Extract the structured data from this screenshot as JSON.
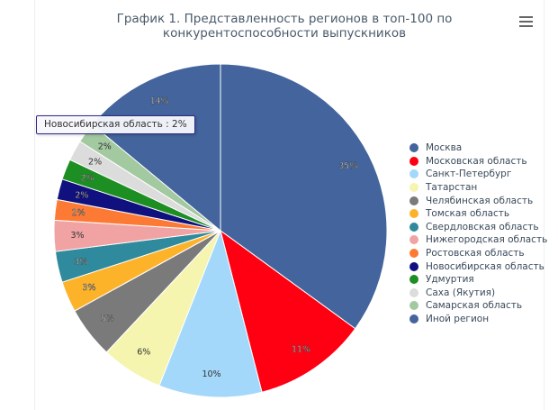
{
  "chart_data": {
    "type": "pie",
    "title": "График 1. Представленность регионов в топ-100 по конкурентоспособности выпускников",
    "categories": [
      "Москва",
      "Московская область",
      "Санкт-Петербург",
      "Татарстан",
      "Челябинская область",
      "Томская область",
      "Свердловская область",
      "Нижегородская область",
      "Ростовская область",
      "Новосибирская область",
      "Удмуртия",
      "Саха (Якутия)",
      "Самарская область",
      "Иной регион"
    ],
    "values": [
      35,
      11,
      10,
      6,
      5,
      3,
      3,
      3,
      2,
      2,
      2,
      2,
      2,
      14
    ],
    "labels": [
      "35%",
      "11%",
      "10%",
      "6%",
      "5%",
      "3%",
      "3%",
      "3%",
      "2%",
      "2%",
      "2%",
      "2%",
      "2%",
      "14%"
    ],
    "colors": [
      "#43649c",
      "#ff0012",
      "#a3d8fb",
      "#f5f5b0",
      "#7a7a7a",
      "#fcb32a",
      "#2e8a9c",
      "#f1a3a3",
      "#fd7a35",
      "#10117e",
      "#1d8e22",
      "#dcdcdc",
      "#a3c9a0",
      "#43649c"
    ],
    "legend_position": "right",
    "start": "top, clockwise"
  },
  "tooltip": {
    "text": "Новосибирская область : 2%"
  },
  "menu_icon": "hamburger-menu-icon"
}
